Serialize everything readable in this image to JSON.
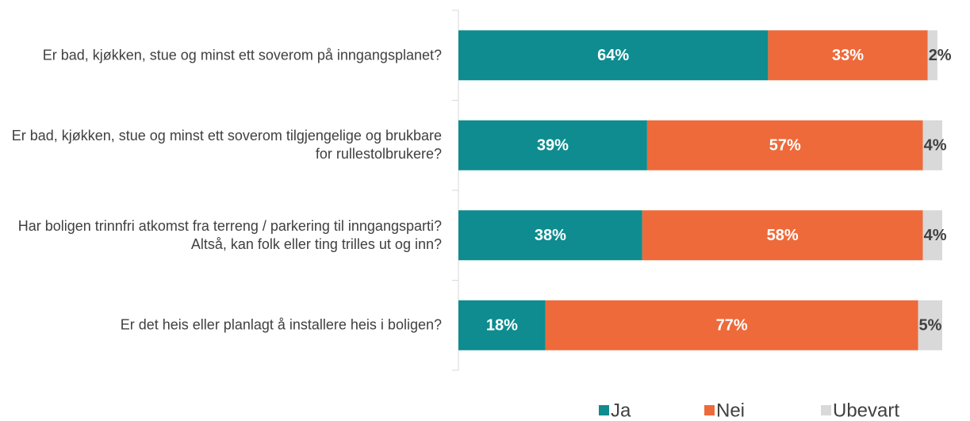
{
  "chart_data": {
    "type": "stacked_barh",
    "categories": [
      "Er bad, kjøkken, stue og minst ett soverom på inngangsplanet?",
      "Er bad, kjøkken, stue og minst ett soverom tilgjengelige og brukbare for rullestolbrukere?",
      "Har boligen trinnfri atkomst fra terreng / parkering til inngangsparti? Altså, kan folk eller ting trilles ut og inn?",
      "Er det heis eller planlagt å installere heis i boligen?"
    ],
    "series": [
      {
        "name": "Ja",
        "color": "#0e8c8f",
        "values": [
          64,
          39,
          38,
          18
        ],
        "value_labels": [
          "64%",
          "39%",
          "38%",
          "18%"
        ]
      },
      {
        "name": "Nei",
        "color": "#ee6a3a",
        "values": [
          33,
          57,
          58,
          77
        ],
        "value_labels": [
          "33%",
          "57%",
          "58%",
          "77%"
        ]
      },
      {
        "name": "Ubevart",
        "color": "#d9d9d9",
        "values": [
          2,
          4,
          4,
          5
        ],
        "value_labels": [
          "2%",
          "4%",
          "4%",
          "5%"
        ]
      }
    ],
    "xlim": [
      0,
      100
    ],
    "legend": "bottom"
  }
}
